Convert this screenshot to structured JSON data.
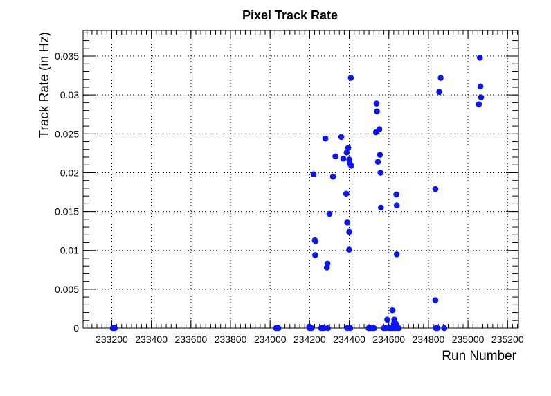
{
  "chart_data": {
    "type": "scatter",
    "title": "Pixel Track Rate",
    "xlabel": "Run Number",
    "ylabel": "Track Rate (in Hz)",
    "xlim": [
      233055,
      235255
    ],
    "ylim": [
      0,
      0.0383
    ],
    "grid": true,
    "marker_color": "#0a14f5",
    "x_ticks": [
      233200,
      233400,
      233600,
      233800,
      234000,
      234200,
      234400,
      234600,
      234800,
      235000,
      235200
    ],
    "y_ticks": [
      0,
      0.005,
      0.01,
      0.015,
      0.02,
      0.025,
      0.03,
      0.035
    ],
    "series": [
      {
        "points": [
          [
            233205,
            0
          ],
          [
            233210,
            0
          ],
          [
            233215,
            0
          ],
          [
            234030,
            0
          ],
          [
            234035,
            0
          ],
          [
            234042,
            0
          ],
          [
            234198,
            0.0002
          ],
          [
            234200,
            0
          ],
          [
            234205,
            0
          ],
          [
            234210,
            0
          ],
          [
            234220,
            0.0198
          ],
          [
            234226,
            0.0113
          ],
          [
            234230,
            0.0112
          ],
          [
            234228,
            0.0094
          ],
          [
            234258,
            0
          ],
          [
            234265,
            0
          ],
          [
            234272,
            0
          ],
          [
            234280,
            0.0244
          ],
          [
            234287,
            0.0078
          ],
          [
            234290,
            0.0083
          ],
          [
            234292,
            0
          ],
          [
            234300,
            0.0147
          ],
          [
            234318,
            0.0195
          ],
          [
            234330,
            0.0221
          ],
          [
            234360,
            0.0246
          ],
          [
            234370,
            0.0218
          ],
          [
            234385,
            0.0173
          ],
          [
            234387,
            0.0226
          ],
          [
            234390,
            0.0136
          ],
          [
            234390,
            0
          ],
          [
            234395,
            0.0232
          ],
          [
            234400,
            0.0217
          ],
          [
            234402,
            0.0212
          ],
          [
            234400,
            0.0124
          ],
          [
            234400,
            0.0101
          ],
          [
            234405,
            0
          ],
          [
            234408,
            0.0322
          ],
          [
            234410,
            0.0209
          ],
          [
            234498,
            0
          ],
          [
            234505,
            0
          ],
          [
            234512,
            0
          ],
          [
            234520,
            0
          ],
          [
            234525,
            0
          ],
          [
            234535,
            0.0252
          ],
          [
            234538,
            0.0289
          ],
          [
            234540,
            0.0279
          ],
          [
            234545,
            0.0214
          ],
          [
            234552,
            0.0256
          ],
          [
            234555,
            0.0223
          ],
          [
            234558,
            0.02
          ],
          [
            234560,
            0.0155
          ],
          [
            234575,
            0
          ],
          [
            234585,
            0
          ],
          [
            234592,
            0.0011
          ],
          [
            234600,
            0
          ],
          [
            234610,
            0
          ],
          [
            234618,
            0.0023
          ],
          [
            234620,
            0
          ],
          [
            234625,
            0.0006
          ],
          [
            234628,
            0.0011
          ],
          [
            234630,
            0
          ],
          [
            234635,
            0.0006
          ],
          [
            234638,
            0.0172
          ],
          [
            234640,
            0.0158
          ],
          [
            234640,
            0.0095
          ],
          [
            234645,
            0
          ],
          [
            234650,
            0
          ],
          [
            234835,
            0.0036
          ],
          [
            234835,
            0.0179
          ],
          [
            234838,
            0
          ],
          [
            234845,
            0
          ],
          [
            234855,
            0.0304
          ],
          [
            234862,
            0.0322
          ],
          [
            234880,
            0
          ],
          [
            235055,
            0.0288
          ],
          [
            235060,
            0.0348
          ],
          [
            235063,
            0.0311
          ],
          [
            235066,
            0.0297
          ]
        ]
      }
    ]
  }
}
